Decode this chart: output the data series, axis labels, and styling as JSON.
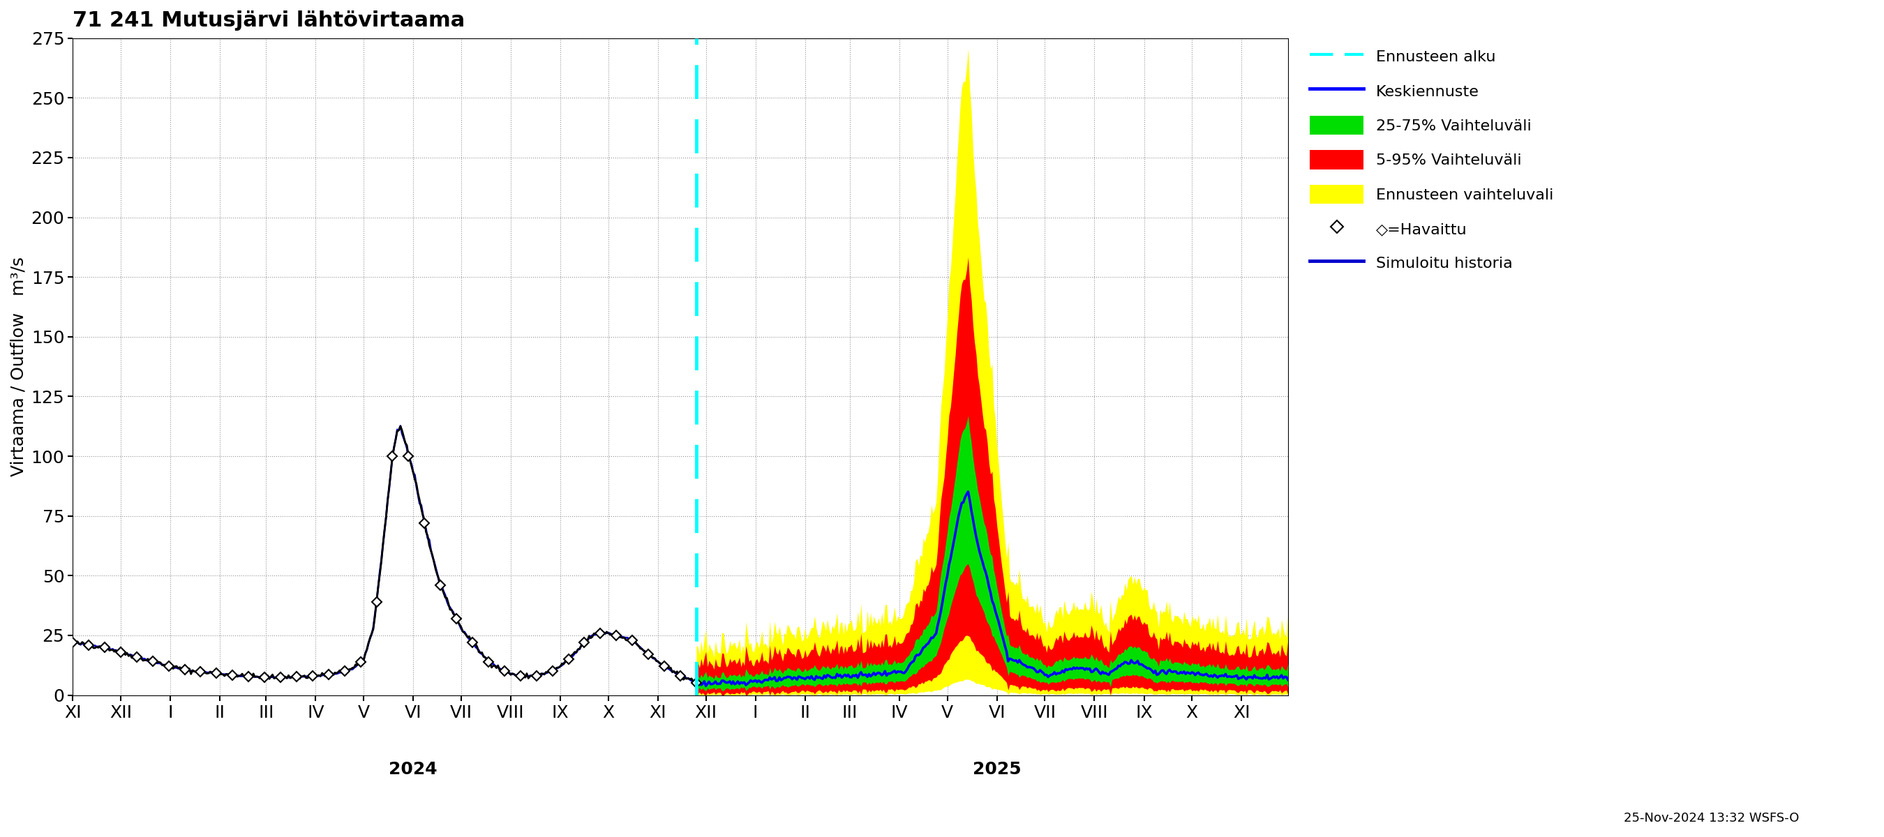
{
  "title": "71 241 Mutusjärvi lähtövirtaama",
  "ylabel": "Virtaama / Outflow   m³/s",
  "ylim": [
    0,
    275
  ],
  "yticks": [
    0,
    25,
    50,
    75,
    100,
    125,
    150,
    175,
    200,
    225,
    250,
    275
  ],
  "forecast_start": "2024-11-25",
  "timestamp_label": "25-Nov-2024 13:32 WSFS-O",
  "legend_labels": {
    "ennusteen_alku": "Ennusteen alku",
    "keskiennuste": "Keskiennuste",
    "vaihteluvali_25_75": "25-75% Vaihteluväli",
    "vaihteluvali_5_95": "5-95% Vaihteluväli",
    "ennusteen_vaihteluvali": "Ennusteen vaihteluvali",
    "havaittu": "◇=Havaittu",
    "simuloitu": "Simuloitu historia"
  },
  "colors": {
    "cyan": "#00FFFF",
    "blue_median": "#0000FF",
    "green_25_75": "#00DD00",
    "red_5_95": "#FF0000",
    "yellow_outer": "#FFFF00",
    "black_obs": "#000000",
    "blue_sim": "#0000CD",
    "grid": "#888888"
  },
  "background_color": "#FFFFFF"
}
